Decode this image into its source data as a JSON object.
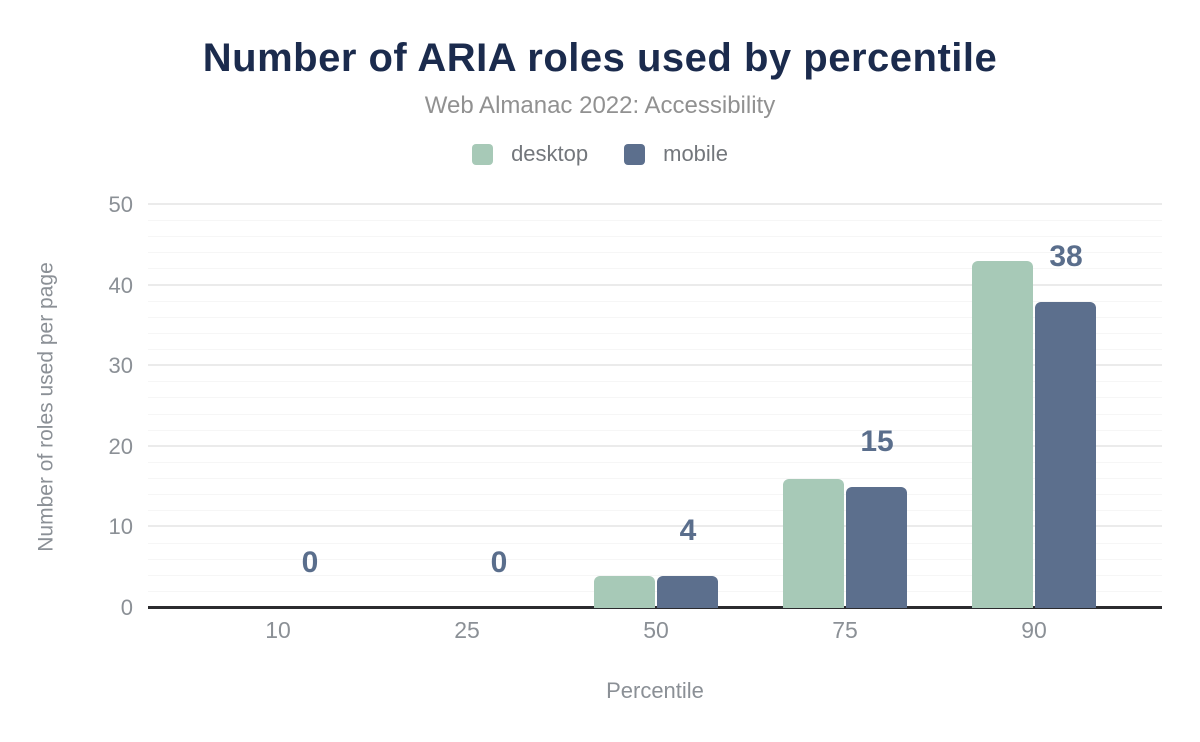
{
  "header": {
    "title": "Number of ARIA roles used by percentile",
    "subtitle": "Web Almanac 2022: Accessibility"
  },
  "legend": [
    {
      "label": "desktop",
      "color": "#a7c9b7"
    },
    {
      "label": "mobile",
      "color": "#5c6f8d"
    }
  ],
  "chart_data": {
    "type": "bar",
    "title": "Number of ARIA roles used by percentile",
    "subtitle": "Web Almanac 2022: Accessibility",
    "categories": [
      "10",
      "25",
      "50",
      "75",
      "90"
    ],
    "series": [
      {
        "name": "desktop",
        "color": "#a7c9b7",
        "values": [
          0,
          0,
          4,
          16,
          43
        ]
      },
      {
        "name": "mobile",
        "color": "#5c6f8d",
        "values": [
          0,
          0,
          4,
          15,
          38
        ]
      }
    ],
    "value_labels": [
      "0",
      "0",
      "4",
      "15",
      "38"
    ],
    "value_label_series": "mobile",
    "value_label_color": "#5a6e8c",
    "xlabel": "Percentile",
    "ylabel": "Number of roles used per page",
    "ylim": [
      0,
      50
    ],
    "y_ticks": [
      0,
      10,
      20,
      30,
      40,
      50
    ],
    "grid": {
      "minor_step": 2,
      "major_step": 10,
      "on": true
    },
    "legend_position": "top",
    "colors": {
      "title": "#1b2b4d",
      "subtitle": "#919191",
      "axis_text": "#8b9096",
      "axis_line": "#2b2b2e",
      "gridline_minor": "#f6f6f6",
      "gridline_major": "#ebebeb",
      "background": "#ffffff"
    }
  }
}
